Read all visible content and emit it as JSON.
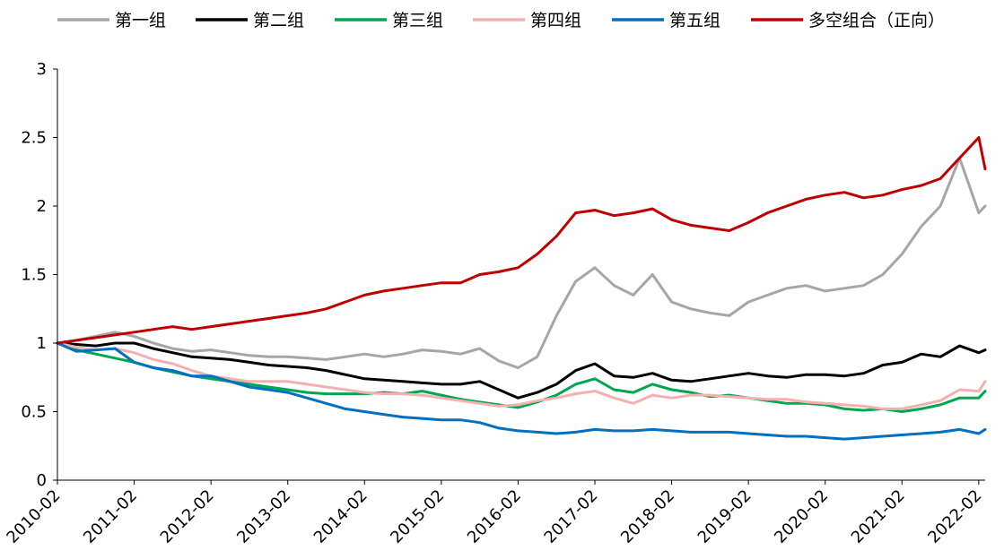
{
  "chart_data": {
    "type": "line",
    "title": "",
    "xlabel": "",
    "ylabel": "",
    "ylim": [
      0,
      3
    ],
    "yticks": [
      "0",
      "0.5",
      "1",
      "1.5",
      "2",
      "2.5",
      "3"
    ],
    "x_ticks": [
      "2010-02",
      "2011-02",
      "2012-02",
      "2013-02",
      "2014-02",
      "2015-02",
      "2016-02",
      "2017-02",
      "2018-02",
      "2019-02",
      "2020-02",
      "2021-02",
      "2022-02"
    ],
    "x_range": [
      "2010-02",
      "2022-03"
    ],
    "grid": false,
    "legend": "top",
    "x": [
      "2010-02",
      "2010-05",
      "2010-08",
      "2010-11",
      "2011-02",
      "2011-05",
      "2011-08",
      "2011-11",
      "2012-02",
      "2012-05",
      "2012-08",
      "2012-11",
      "2013-02",
      "2013-05",
      "2013-08",
      "2013-11",
      "2014-02",
      "2014-05",
      "2014-08",
      "2014-11",
      "2015-02",
      "2015-05",
      "2015-08",
      "2015-11",
      "2016-02",
      "2016-05",
      "2016-08",
      "2016-11",
      "2017-02",
      "2017-05",
      "2017-08",
      "2017-11",
      "2018-02",
      "2018-05",
      "2018-08",
      "2018-11",
      "2019-02",
      "2019-05",
      "2019-08",
      "2019-11",
      "2020-02",
      "2020-05",
      "2020-08",
      "2020-11",
      "2021-02",
      "2021-05",
      "2021-08",
      "2021-11",
      "2022-02",
      "2022-03"
    ],
    "series": [
      {
        "name": "第一组",
        "color": "#a6a6a6",
        "values": [
          1.0,
          1.02,
          1.05,
          1.08,
          1.05,
          1.0,
          0.96,
          0.94,
          0.95,
          0.93,
          0.91,
          0.9,
          0.9,
          0.89,
          0.88,
          0.9,
          0.92,
          0.9,
          0.92,
          0.95,
          0.94,
          0.92,
          0.96,
          0.87,
          0.82,
          0.9,
          1.2,
          1.45,
          1.55,
          1.42,
          1.35,
          1.5,
          1.3,
          1.25,
          1.22,
          1.2,
          1.3,
          1.35,
          1.4,
          1.42,
          1.38,
          1.4,
          1.42,
          1.5,
          1.65,
          1.85,
          2.0,
          2.35,
          1.95,
          2.0
        ]
      },
      {
        "name": "第二组",
        "color": "#000000",
        "values": [
          1.0,
          0.99,
          0.98,
          1.0,
          1.0,
          0.96,
          0.93,
          0.9,
          0.89,
          0.88,
          0.86,
          0.84,
          0.83,
          0.82,
          0.8,
          0.77,
          0.74,
          0.73,
          0.72,
          0.71,
          0.7,
          0.7,
          0.72,
          0.66,
          0.6,
          0.64,
          0.7,
          0.8,
          0.85,
          0.76,
          0.75,
          0.78,
          0.73,
          0.72,
          0.74,
          0.76,
          0.78,
          0.76,
          0.75,
          0.77,
          0.77,
          0.76,
          0.78,
          0.84,
          0.86,
          0.92,
          0.9,
          0.98,
          0.93,
          0.95
        ]
      },
      {
        "name": "第三组",
        "color": "#00a650",
        "values": [
          1.0,
          0.95,
          0.92,
          0.89,
          0.86,
          0.82,
          0.79,
          0.76,
          0.74,
          0.72,
          0.7,
          0.68,
          0.66,
          0.64,
          0.63,
          0.63,
          0.63,
          0.64,
          0.63,
          0.65,
          0.62,
          0.59,
          0.57,
          0.55,
          0.53,
          0.57,
          0.62,
          0.7,
          0.74,
          0.66,
          0.64,
          0.7,
          0.66,
          0.64,
          0.61,
          0.62,
          0.6,
          0.58,
          0.56,
          0.56,
          0.55,
          0.52,
          0.51,
          0.52,
          0.5,
          0.52,
          0.55,
          0.6,
          0.6,
          0.65
        ]
      },
      {
        "name": "第四组",
        "color": "#f4b0b0",
        "values": [
          1.0,
          0.97,
          0.95,
          0.96,
          0.93,
          0.88,
          0.85,
          0.8,
          0.76,
          0.74,
          0.72,
          0.72,
          0.72,
          0.7,
          0.68,
          0.66,
          0.64,
          0.63,
          0.63,
          0.62,
          0.6,
          0.58,
          0.56,
          0.54,
          0.55,
          0.58,
          0.6,
          0.63,
          0.65,
          0.6,
          0.56,
          0.62,
          0.6,
          0.62,
          0.62,
          0.61,
          0.6,
          0.59,
          0.59,
          0.57,
          0.56,
          0.55,
          0.54,
          0.52,
          0.52,
          0.55,
          0.58,
          0.66,
          0.65,
          0.72
        ]
      },
      {
        "name": "第五组",
        "color": "#0070c0",
        "values": [
          1.0,
          0.94,
          0.95,
          0.96,
          0.86,
          0.82,
          0.8,
          0.76,
          0.76,
          0.72,
          0.68,
          0.66,
          0.64,
          0.6,
          0.56,
          0.52,
          0.5,
          0.48,
          0.46,
          0.45,
          0.44,
          0.44,
          0.42,
          0.38,
          0.36,
          0.35,
          0.34,
          0.35,
          0.37,
          0.36,
          0.36,
          0.37,
          0.36,
          0.35,
          0.35,
          0.35,
          0.34,
          0.33,
          0.32,
          0.32,
          0.31,
          0.3,
          0.31,
          0.32,
          0.33,
          0.34,
          0.35,
          0.37,
          0.34,
          0.37
        ]
      },
      {
        "name": "多空组合（正向）",
        "color": "#c00000",
        "values": [
          1.0,
          1.02,
          1.04,
          1.06,
          1.08,
          1.1,
          1.12,
          1.1,
          1.12,
          1.14,
          1.16,
          1.18,
          1.2,
          1.22,
          1.25,
          1.3,
          1.35,
          1.38,
          1.4,
          1.42,
          1.44,
          1.44,
          1.5,
          1.52,
          1.55,
          1.65,
          1.78,
          1.95,
          1.97,
          1.93,
          1.95,
          1.98,
          1.9,
          1.86,
          1.84,
          1.82,
          1.88,
          1.95,
          2.0,
          2.05,
          2.08,
          2.1,
          2.06,
          2.08,
          2.12,
          2.15,
          2.2,
          2.35,
          2.5,
          2.27
        ]
      }
    ]
  }
}
